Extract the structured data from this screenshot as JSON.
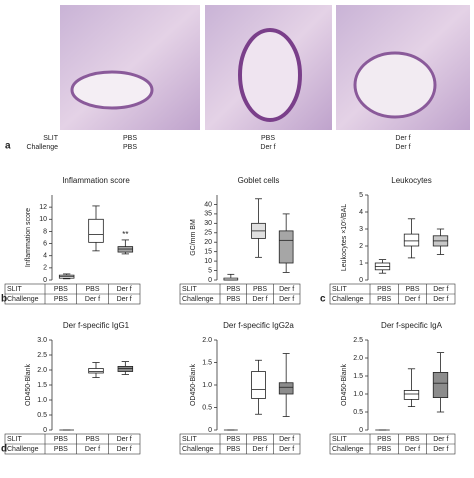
{
  "panel_a": {
    "letter": "a",
    "row_labels": [
      "SLIT",
      "Challenge"
    ],
    "images": [
      {
        "slit": "PBS",
        "challenge": "PBS"
      },
      {
        "slit": "PBS",
        "challenge": "Der f"
      },
      {
        "slit": "Der f",
        "challenge": "Der f"
      }
    ]
  },
  "chart_data": [
    {
      "type": "box",
      "panel_label": "b",
      "title": "Inflammation score",
      "y_label": "Inflammation score",
      "ylim": [
        0,
        14
      ],
      "yticks": [
        0,
        2,
        4,
        6,
        8,
        10,
        12
      ],
      "table": {
        "row_labels": [
          "SLIT",
          "Challenge"
        ],
        "slit": [
          "PBS",
          "PBS",
          "Der f"
        ],
        "challenge": [
          "PBS",
          "Der f",
          "Der f"
        ]
      },
      "boxes": [
        {
          "min": 0.2,
          "q1": 0.3,
          "median": 0.6,
          "q3": 0.8,
          "max": 1.0,
          "color": "#ffffff"
        },
        {
          "min": 4.8,
          "q1": 6.2,
          "median": 7.5,
          "q3": 10,
          "max": 12.2,
          "color": "#ffffff"
        },
        {
          "min": 4.3,
          "q1": 4.6,
          "median": 5.1,
          "q3": 5.5,
          "max": 6.6,
          "color": "#a6a6a6",
          "label": "**"
        }
      ]
    },
    {
      "type": "box",
      "title": "Goblet cells",
      "y_label": "GC/mm BM",
      "ylim": [
        0,
        45
      ],
      "yticks": [
        0,
        5,
        10,
        15,
        20,
        25,
        30,
        35,
        40
      ],
      "table": {
        "row_labels": [
          "SLIT",
          "Challenge"
        ],
        "slit": [
          "PBS",
          "PBS",
          "Der f"
        ],
        "challenge": [
          "PBS",
          "Der f",
          "Der f"
        ]
      },
      "boxes": [
        {
          "min": 0,
          "q1": 0,
          "median": 0,
          "q3": 1,
          "max": 3,
          "color": "#ffffff"
        },
        {
          "min": 12,
          "q1": 22,
          "median": 26,
          "q3": 30,
          "max": 43,
          "color": "#e0e0e0"
        },
        {
          "min": 4,
          "q1": 9,
          "median": 21,
          "q3": 26,
          "max": 35,
          "color": "#a6a6a6"
        }
      ]
    },
    {
      "type": "box",
      "panel_label": "c",
      "title": "Leukocytes",
      "y_label": "Leukocytes ×10⁵/BAL",
      "ylim": [
        0,
        5
      ],
      "yticks": [
        0,
        1,
        2,
        3,
        4,
        5
      ],
      "table": {
        "row_labels": [
          "SLIT",
          "Challenge"
        ],
        "slit": [
          "PBS",
          "PBS",
          "Der f"
        ],
        "challenge": [
          "PBS",
          "Der f",
          "Der f"
        ]
      },
      "boxes": [
        {
          "min": 0.4,
          "q1": 0.6,
          "median": 0.8,
          "q3": 1.0,
          "max": 1.2,
          "color": "#ffffff"
        },
        {
          "min": 1.3,
          "q1": 2.0,
          "median": 2.3,
          "q3": 2.7,
          "max": 3.6,
          "color": "#ffffff"
        },
        {
          "min": 1.5,
          "q1": 2.0,
          "median": 2.3,
          "q3": 2.6,
          "max": 3.0,
          "color": "#c8c8c8"
        }
      ]
    },
    {
      "type": "box",
      "panel_label": "d",
      "title": "Der f-specific IgG1",
      "y_label": "OD450-Blank",
      "ylim": [
        0,
        3
      ],
      "yticks": [
        0,
        0.5,
        {
          "value": 1,
          "label": "1.0"
        },
        1.5,
        {
          "value": 2,
          "label": "2.0"
        },
        2.5,
        {
          "value": 3,
          "label": "3.0"
        }
      ],
      "table": {
        "row_labels": [
          "SLIT",
          "Challenge"
        ],
        "slit": [
          "PBS",
          "PBS",
          "Der f"
        ],
        "challenge": [
          "PBS",
          "Der f",
          "Der f"
        ]
      },
      "boxes": [
        {
          "min": 0,
          "q1": 0,
          "median": 0,
          "q3": 0,
          "max": 0,
          "color": "#ffffff"
        },
        {
          "min": 1.75,
          "q1": 1.9,
          "median": 1.95,
          "q3": 2.05,
          "max": 2.25,
          "color": "#ffffff"
        },
        {
          "min": 1.85,
          "q1": 1.95,
          "median": 2.05,
          "q3": 2.12,
          "max": 2.28,
          "color": "#8c8c8c"
        }
      ]
    },
    {
      "type": "box",
      "title": "Der f-specific IgG2a",
      "y_label": "OD450-Blank",
      "ylim": [
        0,
        2
      ],
      "yticks": [
        0,
        0.5,
        {
          "value": 1,
          "label": "1.0"
        },
        1.5,
        {
          "value": 2,
          "label": "2.0"
        }
      ],
      "table": {
        "row_labels": [
          "SLIT",
          "Challenge"
        ],
        "slit": [
          "PBS",
          "PBS",
          "Der f"
        ],
        "challenge": [
          "PBS",
          "Der f",
          "Der f"
        ]
      },
      "boxes": [
        {
          "min": 0,
          "q1": 0,
          "median": 0,
          "q3": 0,
          "max": 0,
          "color": "#ffffff"
        },
        {
          "min": 0.35,
          "q1": 0.7,
          "median": 0.9,
          "q3": 1.3,
          "max": 1.55,
          "color": "#ffffff"
        },
        {
          "min": 0.3,
          "q1": 0.8,
          "median": 0.95,
          "q3": 1.05,
          "max": 1.7,
          "color": "#8c8c8c"
        }
      ]
    },
    {
      "type": "box",
      "title": "Der f-specific IgA",
      "y_label": "OD450-Blank",
      "ylim": [
        0,
        2.5
      ],
      "yticks": [
        0,
        0.5,
        {
          "value": 1,
          "label": "1.0"
        },
        1.5,
        {
          "value": 2,
          "label": "2.0"
        },
        2.5
      ],
      "table": {
        "row_labels": [
          "SLIT",
          "Challenge"
        ],
        "slit": [
          "PBS",
          "PBS",
          "Der f"
        ],
        "challenge": [
          "PBS",
          "Der f",
          "Der f"
        ]
      },
      "boxes": [
        {
          "min": 0,
          "q1": 0,
          "median": 0,
          "q3": 0,
          "max": 0,
          "color": "#ffffff"
        },
        {
          "min": 0.65,
          "q1": 0.85,
          "median": 1.0,
          "q3": 1.1,
          "max": 1.7,
          "color": "#ffffff"
        },
        {
          "min": 0.5,
          "q1": 0.9,
          "median": 1.3,
          "q3": 1.6,
          "max": 2.15,
          "color": "#8c8c8c"
        }
      ]
    }
  ]
}
